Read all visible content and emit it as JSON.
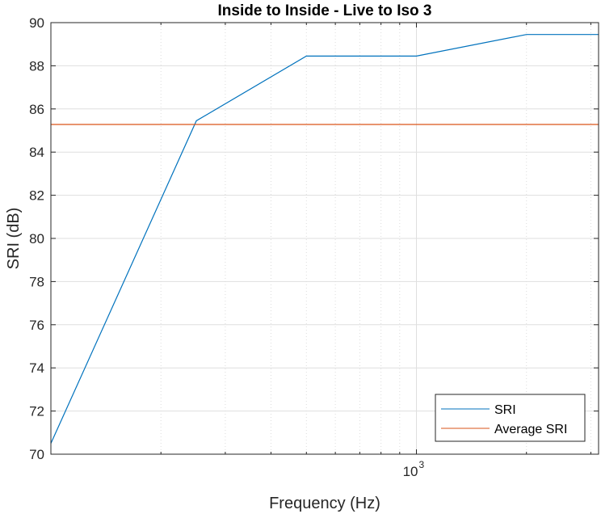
{
  "chart_data": {
    "type": "line",
    "title": "Inside to Inside - Live to Iso 3",
    "xlabel": "Frequency (Hz)",
    "ylabel": "SRI (dB)",
    "x_scale": "log",
    "xlim": [
      100,
      3150
    ],
    "ylim": [
      70,
      90
    ],
    "y_ticks": [
      70,
      72,
      74,
      76,
      78,
      80,
      82,
      84,
      86,
      88,
      90
    ],
    "x_tick_label": {
      "base": "10",
      "exponent": "3"
    },
    "grid": true,
    "legend_position": "bottom-right",
    "series": [
      {
        "name": "SRI",
        "color": "#0072BD",
        "x": [
          100,
          250,
          500,
          1000,
          2000,
          3150
        ],
        "y": [
          70.5,
          85.45,
          88.45,
          88.45,
          89.45,
          89.45
        ]
      },
      {
        "name": "Average SRI",
        "color": "#D95319",
        "x": [
          100,
          3150
        ],
        "y": [
          85.28,
          85.28
        ]
      }
    ]
  }
}
